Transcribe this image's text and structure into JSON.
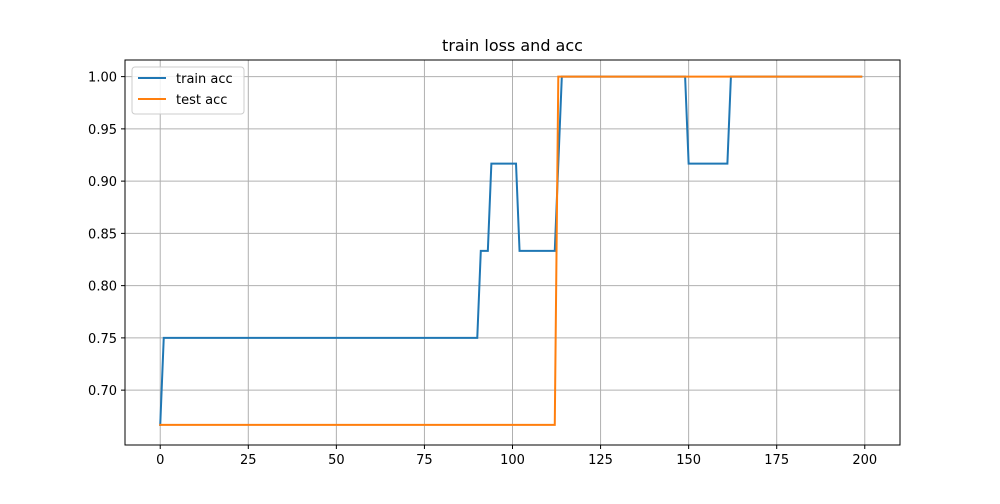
{
  "chart_data": {
    "type": "line",
    "title": "train loss and acc",
    "xlabel": "",
    "ylabel": "",
    "xlim": [
      -10,
      210
    ],
    "ylim": [
      0.6475,
      1.0159
    ],
    "xticks": [
      0,
      25,
      50,
      75,
      100,
      125,
      150,
      175,
      200
    ],
    "xtick_labels": [
      "0",
      "25",
      "50",
      "75",
      "100",
      "125",
      "150",
      "175",
      "200"
    ],
    "yticks": [
      0.7,
      0.75,
      0.8,
      0.85,
      0.9,
      0.95,
      1.0
    ],
    "ytick_labels": [
      "0.70",
      "0.75",
      "0.80",
      "0.85",
      "0.90",
      "0.95",
      "1.00"
    ],
    "grid": true,
    "legend": {
      "position": "upper-left",
      "entries": [
        "train acc",
        "test acc"
      ]
    },
    "series": [
      {
        "name": "train acc",
        "color": "#1f77b4",
        "points": [
          [
            0,
            0.6667
          ],
          [
            1,
            0.75
          ],
          [
            90,
            0.75
          ],
          [
            91,
            0.8333
          ],
          [
            93,
            0.8333
          ],
          [
            94,
            0.9167
          ],
          [
            101,
            0.9167
          ],
          [
            102,
            0.8333
          ],
          [
            112,
            0.8333
          ],
          [
            113,
            0.9167
          ],
          [
            114,
            1.0
          ],
          [
            149,
            1.0
          ],
          [
            150,
            0.9167
          ],
          [
            161,
            0.9167
          ],
          [
            162,
            1.0
          ],
          [
            199,
            1.0
          ]
        ]
      },
      {
        "name": "test acc",
        "color": "#ff7f0e",
        "points": [
          [
            0,
            0.6667
          ],
          [
            112,
            0.6667
          ],
          [
            113,
            1.0
          ],
          [
            199,
            1.0
          ]
        ]
      }
    ]
  }
}
